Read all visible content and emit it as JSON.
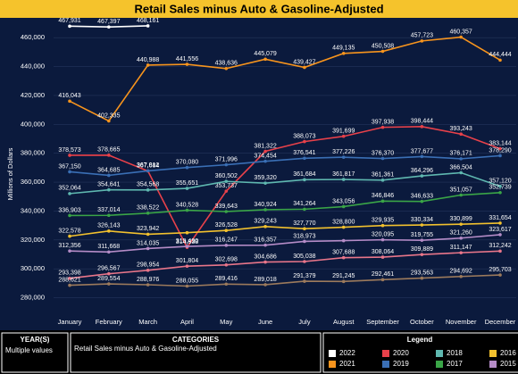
{
  "chart_data": {
    "type": "line",
    "title": "Retail Sales minus Auto & Gasoline-Adjusted",
    "y_label": "Millions of Dollars",
    "categories": [
      "January",
      "February",
      "March",
      "April",
      "May",
      "June",
      "July",
      "August",
      "September",
      "October",
      "November",
      "December"
    ],
    "ylim": [
      276000,
      470000
    ],
    "yticks": [
      {
        "value": 280000,
        "label": "280,000"
      },
      {
        "value": 300000,
        "label": "300,000"
      },
      {
        "value": 320000,
        "label": "320,000"
      },
      {
        "value": 340000,
        "label": "340,000"
      },
      {
        "value": 360000,
        "label": "360,000"
      },
      {
        "value": 380000,
        "label": "380,000"
      },
      {
        "value": 400000,
        "label": "400,000"
      },
      {
        "value": 420000,
        "label": "420,000"
      },
      {
        "value": 440000,
        "label": "440,000"
      },
      {
        "value": 460000,
        "label": "460,000"
      }
    ],
    "grid": true,
    "series": [
      {
        "name": "2022",
        "color": "#ffffff",
        "values": [
          467931,
          467397,
          468161,
          null,
          null,
          null,
          null,
          null,
          null,
          null,
          null,
          null
        ],
        "value_labels": [
          "467,931",
          "467,397",
          "468,161",
          null,
          null,
          null,
          null,
          null,
          null,
          null,
          null,
          null
        ]
      },
      {
        "name": "2021",
        "color": "#f7941d",
        "values": [
          416043,
          402335,
          440988,
          441556,
          438636,
          445079,
          439427,
          449135,
          450508,
          457723,
          460357,
          444444
        ],
        "value_labels": [
          "416,043",
          "402,335",
          "440,988",
          "441,556",
          "438,636",
          "445,079",
          "439,427",
          "449,135",
          "450,508",
          "457,723",
          "460,357",
          "444,444"
        ]
      },
      {
        "name": "2020",
        "color": "#e8414a",
        "values": [
          378573,
          378665,
          367684,
          314838,
          353737,
          381322,
          388073,
          391699,
          397938,
          398444,
          393243,
          383144
        ],
        "value_labels": [
          "378,573",
          "378,665",
          "367,684",
          "314,838",
          "353,737",
          "381,322",
          "388,073",
          "391,699",
          "397,938",
          "398,444",
          "393,243",
          "383,144"
        ]
      },
      {
        "name": "2019",
        "color": "#3a6fb5",
        "values": [
          367150,
          364685,
          367812,
          370080,
          371996,
          374454,
          376541,
          377226,
          376370,
          377677,
          376171,
          378290
        ],
        "value_labels": [
          "367,150",
          "364,685",
          "367,812",
          "370,080",
          "371,996",
          "374,454",
          "376,541",
          "377,226",
          "376,370",
          "377,677",
          "376,171",
          "378,290"
        ]
      },
      {
        "name": "2018",
        "color": "#5fb8b0",
        "values": [
          352064,
          354641,
          354568,
          355651,
          360502,
          359320,
          361684,
          361817,
          361361,
          364296,
          366504,
          357120
        ],
        "value_labels": [
          "352,064",
          "354,641",
          "354,568",
          "355,651",
          "360,502",
          "359,320",
          "361,684",
          "361,817",
          "361,361",
          "364,296",
          "366,504",
          "357,120"
        ]
      },
      {
        "name": "2017",
        "color": "#3aa547",
        "values": [
          336903,
          337014,
          338522,
          340528,
          339643,
          340924,
          341264,
          343056,
          346846,
          346633,
          351057,
          352739
        ],
        "value_labels": [
          "336,903",
          "337,014",
          "338,522",
          "340,528",
          "339,643",
          "340,924",
          "341,264",
          "343,056",
          "346,846",
          "346,633",
          "351,057",
          "352,739"
        ]
      },
      {
        "name": "2016",
        "color": "#f2c12e",
        "values": [
          322578,
          326143,
          323942,
          325000,
          326528,
          329243,
          327770,
          328800,
          329935,
          330334,
          330899,
          331654
        ],
        "value_labels": [
          "322,578",
          "326,143",
          "323,942",
          null,
          "326,528",
          "329,243",
          "327,770",
          "328,800",
          "329,935",
          "330,334",
          "330,899",
          "331,654"
        ]
      },
      {
        "name": "2015",
        "color": "#b58cc7",
        "values": [
          312356,
          311668,
          314035,
          315490,
          316247,
          316357,
          318973,
          319500,
          320095,
          319755,
          321260,
          323617
        ],
        "value_labels": [
          "312,356",
          "311,668",
          "314,035",
          "315,490",
          "316,247",
          "316,357",
          "318,973",
          null,
          "320,095",
          "319,755",
          "321,260",
          "323,617"
        ]
      },
      {
        "color": "#e9768a",
        "values": [
          293398,
          296567,
          298954,
          301804,
          302698,
          304686,
          305038,
          307688,
          308064,
          309889,
          311147,
          312242
        ],
        "value_labels": [
          "293,398",
          "296,567",
          "298,954",
          "301,804",
          "302,698",
          "304,686",
          "305,038",
          "307,688",
          "308,064",
          "309,889",
          "311,147",
          "312,242"
        ]
      },
      {
        "color": "#9c7a5c",
        "values": [
          288621,
          289554,
          288976,
          288055,
          289416,
          289018,
          291379,
          291245,
          292461,
          293563,
          294692,
          295703
        ],
        "value_labels": [
          "288,621",
          "289,554",
          "288,976",
          "288,055",
          "289,416",
          "289,018",
          "291,379",
          "291,245",
          "292,461",
          "293,563",
          "294,692",
          "295,703"
        ]
      }
    ]
  },
  "filters": {
    "year_title": "YEAR(S)",
    "year_value": "Multiple values",
    "categories_title": "CATEGORIES",
    "categories_value": "Retail Sales minus Auto & Gasoline-Adjusted",
    "legend_title": "Legend"
  }
}
